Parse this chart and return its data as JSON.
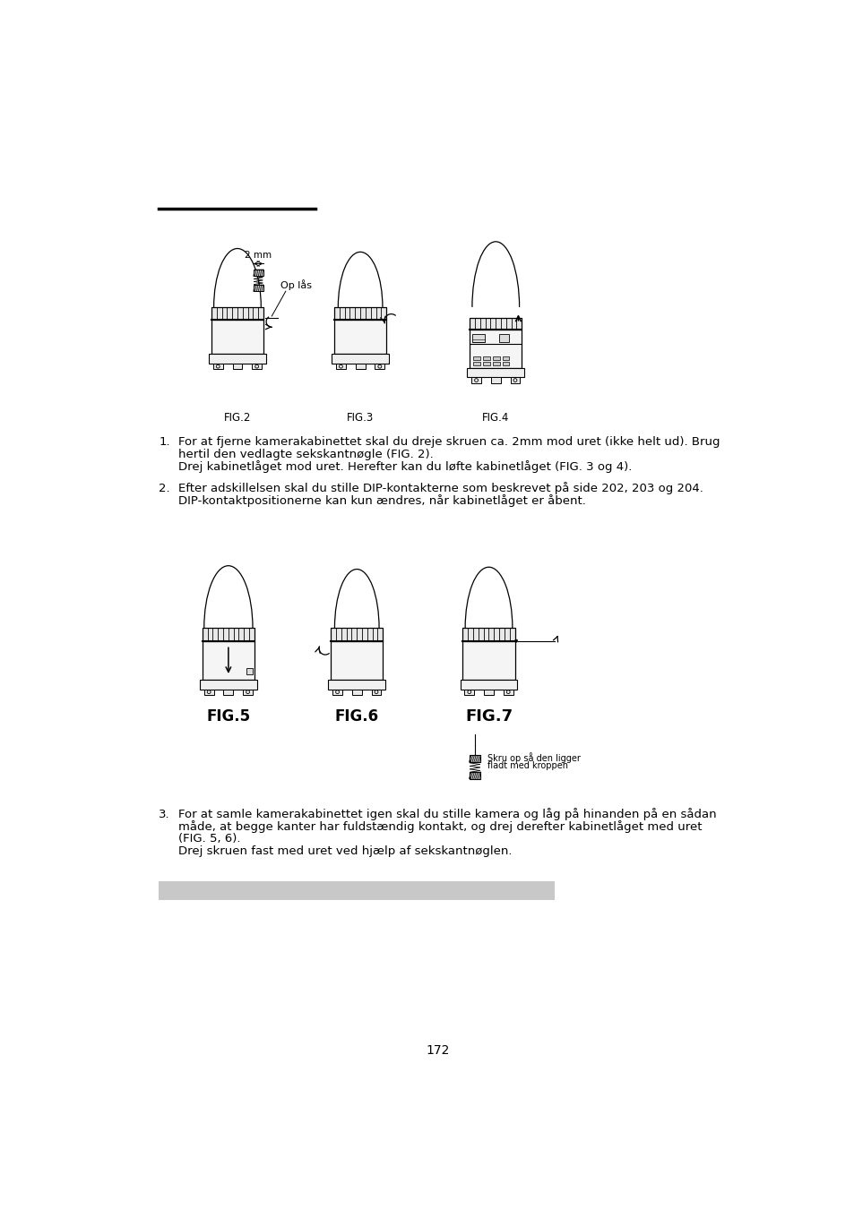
{
  "page_number": "172",
  "background_color": "#ffffff",
  "text_color": "#000000",
  "item1_title": "1.",
  "item1_text_line1": "For at fjerne kamerakabinettet skal du dreje skruen ca. 2mm mod uret (ikke helt ud). Brug",
  "item1_text_line2": "hertil den vedlagte sekskantnøgle (FIG. 2).",
  "item1_text_line3": "Drej kabinetlåget mod uret. Herefter kan du løfte kabinetlåget (FIG. 3 og 4).",
  "item2_title": "2.",
  "item2_text_line1": "Efter adskillelsen skal du stille DIP-kontakterne som beskrevet på side 202, 203 og 204.",
  "item2_text_line2": "DIP-kontaktpositionerne kan kun ændres, når kabinetlåget er åbent.",
  "item3_title": "3.",
  "item3_text_line1": "For at samle kamerakabinettet igen skal du stille kamera og låg på hinanden på en sådan",
  "item3_text_line2": "måde, at begge kanter har fuldstændig kontakt, og drej derefter kabinetlåget med uret",
  "item3_text_line3": "(FIG. 5, 6).",
  "item3_text_line4": "Drej skruen fast med uret ved hjælp af sekskantnøglen.",
  "fig2_label": "FIG.2",
  "fig3_label": "FIG.3",
  "fig4_label": "FIG.4",
  "fig5_label": "FIG.5",
  "fig6_label": "FIG.6",
  "fig7_label": "FIG.7",
  "fig7_note_line1": "Skru op så den ligger",
  "fig7_note_line2": "fladt med kroppen",
  "label_2mm": "2 mm",
  "label_op_las": "Op lås",
  "font_size_body": 9.5,
  "font_size_fig_small": 8.5,
  "font_size_fig_large": 12,
  "font_size_page": 10
}
